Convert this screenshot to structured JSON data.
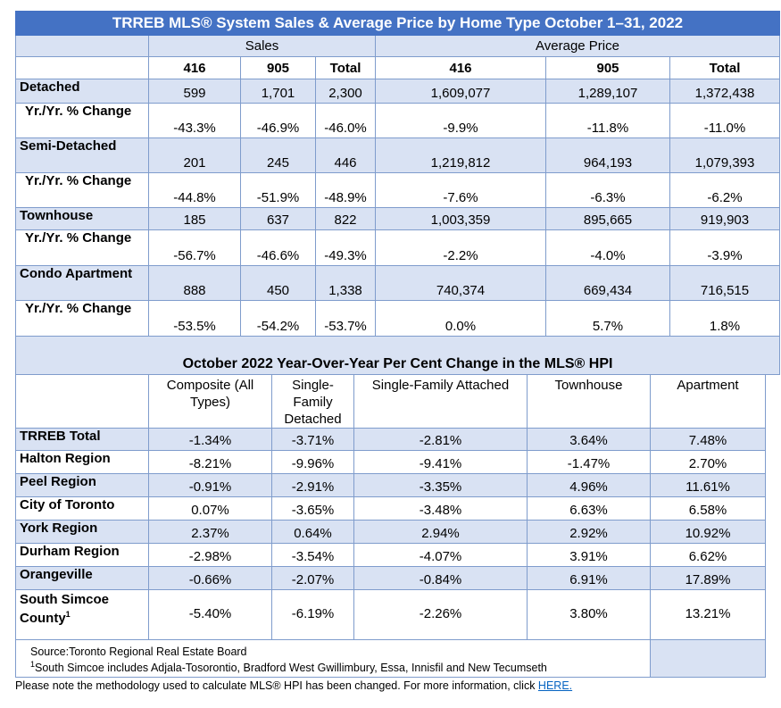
{
  "title": "TRREB MLS® System Sales & Average Price by Home Type October 1–31, 2022",
  "sales_label": "Sales",
  "avg_label": "Average Price",
  "cols": [
    "416",
    "905",
    "Total",
    "416",
    "905",
    "Total"
  ],
  "rows": [
    {
      "label": "Detached",
      "values": [
        "599",
        "1,701",
        "2,300",
        "1,609,077",
        "1,289,107",
        "1,372,438"
      ]
    },
    {
      "label": "Yr./Yr. % Change",
      "values": [
        "-43.3%",
        "-46.9%",
        "-46.0%",
        "-9.9%",
        "-11.8%",
        "-11.0%"
      ]
    },
    {
      "label": "Semi-Detached",
      "values": [
        "201",
        "245",
        "446",
        "1,219,812",
        "964,193",
        "1,079,393"
      ]
    },
    {
      "label": "Yr./Yr. % Change",
      "values": [
        "-44.8%",
        "-51.9%",
        "-48.9%",
        "-7.6%",
        "-6.3%",
        "-6.2%"
      ]
    },
    {
      "label": "Townhouse",
      "values": [
        "185",
        "637",
        "822",
        "1,003,359",
        "895,665",
        "919,903"
      ]
    },
    {
      "label": "Yr./Yr. % Change",
      "values": [
        "-56.7%",
        "-46.6%",
        "-49.3%",
        "-2.2%",
        "-4.0%",
        "-3.9%"
      ]
    },
    {
      "label": "Condo Apartment",
      "values": [
        "888",
        "450",
        "1,338",
        "740,374",
        "669,434",
        "716,515"
      ]
    },
    {
      "label": "Yr./Yr. % Change",
      "values": [
        "-53.5%",
        "-54.2%",
        "-53.7%",
        "0.0%",
        "5.7%",
        "1.8%"
      ]
    }
  ],
  "hpi_title": "October 2022 Year-Over-Year Per Cent Change in the MLS® HPI",
  "hpi_cols": [
    "Composite (All Types)",
    "Single-Family Detached",
    "Single-Family Attached",
    "Townhouse",
    "Apartment"
  ],
  "hpi_rows": [
    {
      "label": "TRREB Total",
      "values": [
        "-1.34%",
        "-3.71%",
        "-2.81%",
        "3.64%",
        "7.48%"
      ]
    },
    {
      "label": "Halton Region",
      "values": [
        "-8.21%",
        "-9.96%",
        "-9.41%",
        "-1.47%",
        "2.70%"
      ]
    },
    {
      "label": "Peel Region",
      "values": [
        "-0.91%",
        "-2.91%",
        "-3.35%",
        "4.96%",
        "11.61%"
      ]
    },
    {
      "label": "City of Toronto",
      "values": [
        "0.07%",
        "-3.65%",
        "-3.48%",
        "6.63%",
        "6.58%"
      ]
    },
    {
      "label": "York Region",
      "values": [
        "2.37%",
        "0.64%",
        "2.94%",
        "2.92%",
        "10.92%"
      ]
    },
    {
      "label": "Durham Region",
      "values": [
        "-2.98%",
        "-3.54%",
        "-4.07%",
        "3.91%",
        "6.62%"
      ]
    },
    {
      "label": "Orangeville",
      "values": [
        "-0.66%",
        "-2.07%",
        "-0.84%",
        "6.91%",
        "17.89%"
      ]
    },
    {
      "label": "South Simcoe County",
      "label_sup": "1",
      "values": [
        "-5.40%",
        "-6.19%",
        "-2.26%",
        "3.80%",
        "13.21%"
      ]
    }
  ],
  "source": "Source:Toronto Regional Real Estate Board",
  "footnote_mark": "1",
  "footnote": "South Simcoe includes Adjala-Tosorontio, Bradford West Gwillimbury, Essa, Innisfil and New Tecumseth",
  "note": "Please note the methodology used to calculate MLS® HPI has been changed. For more information, click ",
  "note_link": "HERE.",
  "colors": {
    "title_bg": "#4472c4",
    "band": "#d9e2f3",
    "border": "#7f9ccc",
    "link": "#0563c1"
  }
}
